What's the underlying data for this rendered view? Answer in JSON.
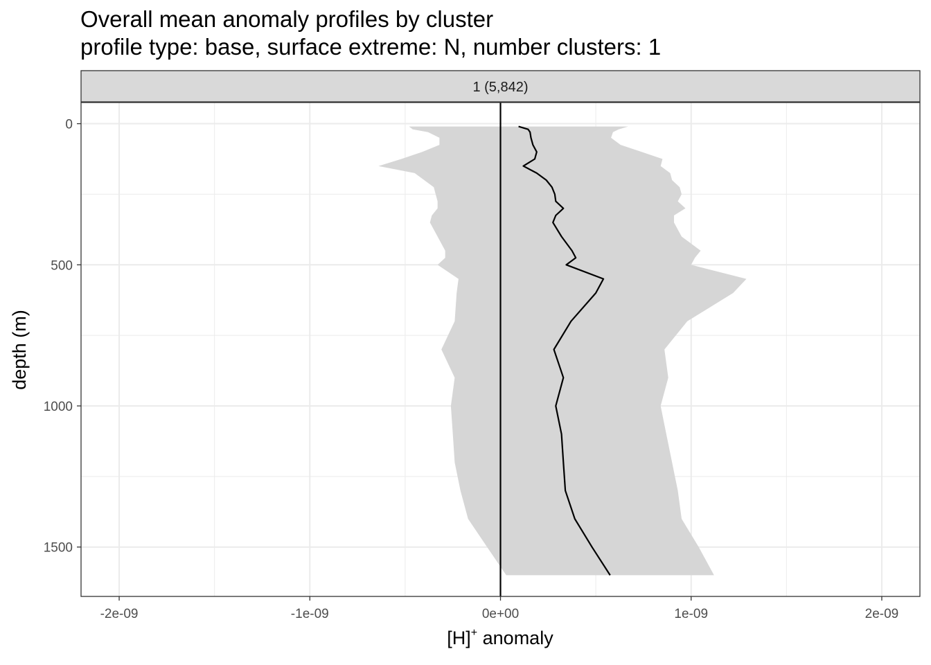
{
  "title": "Overall mean anomaly profiles by cluster",
  "subtitle": "profile type: base, surface extreme: N, number clusters: 1",
  "chart_data": {
    "type": "line",
    "panel_label": "1 (5,842)",
    "xlabel_main": "[H]",
    "xlabel_sup": "+",
    "xlabel_rest": " anomaly",
    "ylabel": "depth (m)",
    "xlim": [
      -2.2e-09,
      2.2e-09
    ],
    "ylim": [
      1675,
      -75
    ],
    "y_reversed": true,
    "x_ticks": [
      -2e-09,
      -1e-09,
      0,
      1e-09,
      2e-09
    ],
    "x_tick_labels": [
      "-2e-09",
      "-1e-09",
      "0e+00",
      "1e-09",
      "2e-09"
    ],
    "y_ticks": [
      0,
      500,
      1000,
      1500
    ],
    "y_tick_labels": [
      "0",
      "500",
      "1000",
      "1500"
    ],
    "zero_line_x": 0,
    "grid": true,
    "series": [
      {
        "values": [
          {
            "depth": 10,
            "mean": 9.5e-11
          },
          {
            "depth": 20,
            "mean": 1.45e-10
          },
          {
            "depth": 30,
            "mean": 1.55e-10
          },
          {
            "depth": 50,
            "mean": 1.6e-10
          },
          {
            "depth": 75,
            "mean": 1.7e-10
          },
          {
            "depth": 100,
            "mean": 1.9e-10
          },
          {
            "depth": 125,
            "mean": 1.8e-10
          },
          {
            "depth": 150,
            "mean": 1.2e-10
          },
          {
            "depth": 175,
            "mean": 1.9e-10
          },
          {
            "depth": 200,
            "mean": 2.4e-10
          },
          {
            "depth": 225,
            "mean": 2.7e-10
          },
          {
            "depth": 250,
            "mean": 2.85e-10
          },
          {
            "depth": 275,
            "mean": 2.9e-10
          },
          {
            "depth": 300,
            "mean": 3.3e-10
          },
          {
            "depth": 325,
            "mean": 2.9e-10
          },
          {
            "depth": 350,
            "mean": 2.75e-10
          },
          {
            "depth": 400,
            "mean": 3.2e-10
          },
          {
            "depth": 450,
            "mean": 3.75e-10
          },
          {
            "depth": 475,
            "mean": 3.95e-10
          },
          {
            "depth": 500,
            "mean": 3.45e-10
          },
          {
            "depth": 550,
            "mean": 5.4e-10
          },
          {
            "depth": 600,
            "mean": 5e-10
          },
          {
            "depth": 700,
            "mean": 3.7e-10
          },
          {
            "depth": 800,
            "mean": 2.8e-10
          },
          {
            "depth": 900,
            "mean": 3.3e-10
          },
          {
            "depth": 1000,
            "mean": 2.9e-10
          },
          {
            "depth": 1100,
            "mean": 3.2e-10
          },
          {
            "depth": 1200,
            "mean": 3.3e-10
          },
          {
            "depth": 1300,
            "mean": 3.4e-10
          },
          {
            "depth": 1400,
            "mean": 3.9e-10
          },
          {
            "depth": 1500,
            "mean": 4.8e-10
          },
          {
            "depth": 1600,
            "mean": 5.75e-10
          }
        ]
      }
    ],
    "ribbon": [
      {
        "depth": 10,
        "lo": -4.8e-10,
        "hi": 6.7e-10
      },
      {
        "depth": 20,
        "lo": -4.6e-10,
        "hi": 6.2e-10
      },
      {
        "depth": 30,
        "lo": -3.8e-10,
        "hi": 5.9e-10
      },
      {
        "depth": 50,
        "lo": -3.2e-10,
        "hi": 5.8e-10
      },
      {
        "depth": 75,
        "lo": -3.2e-10,
        "hi": 6.3e-10
      },
      {
        "depth": 100,
        "lo": -4.1e-10,
        "hi": 7.4e-10
      },
      {
        "depth": 125,
        "lo": -5.2e-10,
        "hi": 8.5e-10
      },
      {
        "depth": 150,
        "lo": -6.4e-10,
        "hi": 8.4e-10
      },
      {
        "depth": 175,
        "lo": -4.5e-10,
        "hi": 8.9e-10
      },
      {
        "depth": 200,
        "lo": -4e-10,
        "hi": 9e-10
      },
      {
        "depth": 225,
        "lo": -3.5e-10,
        "hi": 9.4e-10
      },
      {
        "depth": 250,
        "lo": -3.4e-10,
        "hi": 9.5e-10
      },
      {
        "depth": 275,
        "lo": -3.3e-10,
        "hi": 9.3e-10
      },
      {
        "depth": 300,
        "lo": -3.3e-10,
        "hi": 9.7e-10
      },
      {
        "depth": 325,
        "lo": -3.6e-10,
        "hi": 9.1e-10
      },
      {
        "depth": 350,
        "lo": -3.7e-10,
        "hi": 9.1e-10
      },
      {
        "depth": 400,
        "lo": -3.3e-10,
        "hi": 9.5e-10
      },
      {
        "depth": 450,
        "lo": -2.9e-10,
        "hi": 1.05e-09
      },
      {
        "depth": 475,
        "lo": -2.9e-10,
        "hi": 1.02e-09
      },
      {
        "depth": 500,
        "lo": -3.3e-10,
        "hi": 1e-09
      },
      {
        "depth": 550,
        "lo": -2.2e-10,
        "hi": 1.29e-09
      },
      {
        "depth": 600,
        "lo": -2.3e-10,
        "hi": 1.22e-09
      },
      {
        "depth": 700,
        "lo": -2.4e-10,
        "hi": 9.8e-10
      },
      {
        "depth": 800,
        "lo": -3.1e-10,
        "hi": 8.6e-10
      },
      {
        "depth": 900,
        "lo": -2.4e-10,
        "hi": 8.8e-10
      },
      {
        "depth": 1000,
        "lo": -2.6e-10,
        "hi": 8.4e-10
      },
      {
        "depth": 1100,
        "lo": -2.5e-10,
        "hi": 8.7e-10
      },
      {
        "depth": 1200,
        "lo": -2.4e-10,
        "hi": 9e-10
      },
      {
        "depth": 1300,
        "lo": -2.1e-10,
        "hi": 9.3e-10
      },
      {
        "depth": 1400,
        "lo": -1.7e-10,
        "hi": 9.5e-10
      },
      {
        "depth": 1500,
        "lo": -7e-11,
        "hi": 1.04e-09
      },
      {
        "depth": 1600,
        "lo": 3e-11,
        "hi": 1.12e-09
      }
    ],
    "colors": {
      "ribbon": "#d6d6d6",
      "line": "#000000",
      "grid": "#ebebeb",
      "strip_bg": "#d9d9d9",
      "panel_border": "#333333"
    }
  }
}
